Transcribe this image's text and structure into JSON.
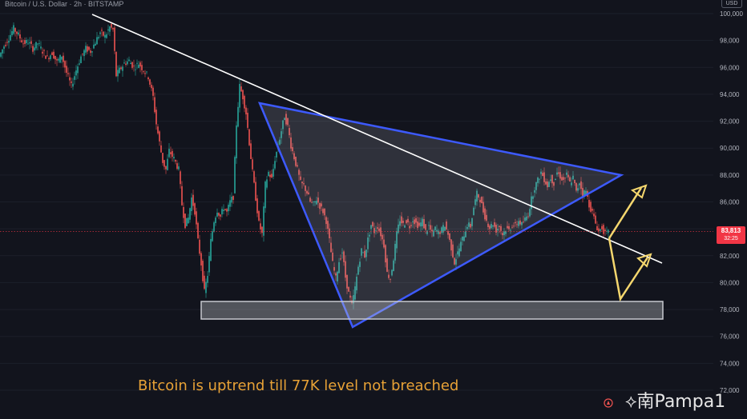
{
  "header": {
    "symbol_title": "Bitcoin / U.S. Dollar · 2h · BITSTAMP"
  },
  "currency": "USD",
  "caption": "Bitcoin is uptrend till 77K level not breached",
  "watermark": "南Pampa1",
  "price_badge": {
    "price": "83,813",
    "countdown": "32:25"
  },
  "colors": {
    "background": "#12141d",
    "up_candle": "#26a69a",
    "down_candle": "#ef5350",
    "trendline": "#ffffff",
    "triangle": "#3d5afe",
    "support_zone": "#c8cad0",
    "arrows": "#f5d76e",
    "caption": "#e8a236",
    "price_line": "#f23645"
  },
  "chart_data": {
    "type": "candlestick",
    "yaxis": {
      "ylim": [
        72000,
        100000
      ],
      "ticks": [
        "100,000",
        "98,000",
        "96,000",
        "94,000",
        "92,000",
        "90,000",
        "88,000",
        "86,000",
        "84,000",
        "82,000",
        "80,000",
        "78,000",
        "76,000",
        "74,000",
        "72,000"
      ]
    },
    "current_price": 83813,
    "price_path": [
      [
        0,
        96800
      ],
      [
        6,
        97600
      ],
      [
        12,
        98200
      ],
      [
        18,
        98900
      ],
      [
        24,
        98400
      ],
      [
        30,
        97800
      ],
      [
        36,
        97900
      ],
      [
        42,
        97400
      ],
      [
        48,
        97800
      ],
      [
        54,
        97200
      ],
      [
        60,
        96700
      ],
      [
        66,
        97100
      ],
      [
        72,
        96400
      ],
      [
        78,
        96900
      ],
      [
        84,
        95600
      ],
      [
        90,
        94600
      ],
      [
        96,
        95800
      ],
      [
        102,
        96800
      ],
      [
        108,
        97400
      ],
      [
        114,
        97200
      ],
      [
        120,
        97900
      ],
      [
        126,
        98600
      ],
      [
        132,
        98300
      ],
      [
        138,
        99000
      ],
      [
        142,
        98800
      ],
      [
        146,
        95400
      ],
      [
        150,
        95800
      ],
      [
        156,
        96300
      ],
      [
        162,
        96500
      ],
      [
        168,
        96000
      ],
      [
        174,
        96300
      ],
      [
        180,
        95800
      ],
      [
        186,
        95300
      ],
      [
        192,
        93800
      ],
      [
        196,
        91800
      ],
      [
        200,
        90400
      ],
      [
        204,
        89000
      ],
      [
        208,
        88400
      ],
      [
        212,
        89800
      ],
      [
        218,
        89200
      ],
      [
        224,
        88400
      ],
      [
        228,
        85800
      ],
      [
        232,
        84300
      ],
      [
        236,
        84800
      ],
      [
        240,
        86300
      ],
      [
        244,
        85300
      ],
      [
        248,
        83100
      ],
      [
        252,
        81400
      ],
      [
        256,
        79300
      ],
      [
        260,
        80600
      ],
      [
        264,
        83100
      ],
      [
        268,
        84600
      ],
      [
        272,
        85400
      ],
      [
        276,
        84900
      ],
      [
        280,
        85600
      ],
      [
        284,
        85200
      ],
      [
        288,
        86000
      ],
      [
        292,
        86400
      ],
      [
        296,
        91800
      ],
      [
        300,
        94600
      ],
      [
        304,
        93800
      ],
      [
        308,
        92600
      ],
      [
        312,
        90400
      ],
      [
        316,
        88200
      ],
      [
        320,
        86300
      ],
      [
        324,
        84400
      ],
      [
        328,
        83600
      ],
      [
        332,
        87300
      ],
      [
        336,
        88200
      ],
      [
        340,
        87700
      ],
      [
        344,
        89200
      ],
      [
        348,
        90200
      ],
      [
        352,
        91300
      ],
      [
        356,
        92400
      ],
      [
        360,
        91600
      ],
      [
        364,
        90200
      ],
      [
        368,
        89300
      ],
      [
        372,
        88400
      ],
      [
        376,
        87400
      ],
      [
        380,
        87200
      ],
      [
        384,
        86700
      ],
      [
        388,
        86000
      ],
      [
        392,
        85800
      ],
      [
        396,
        86200
      ],
      [
        400,
        85700
      ],
      [
        404,
        85300
      ],
      [
        408,
        84600
      ],
      [
        412,
        83100
      ],
      [
        416,
        81400
      ],
      [
        420,
        80300
      ],
      [
        424,
        81600
      ],
      [
        428,
        82300
      ],
      [
        432,
        80400
      ],
      [
        436,
        79200
      ],
      [
        440,
        78300
      ],
      [
        444,
        79600
      ],
      [
        448,
        81200
      ],
      [
        452,
        82400
      ],
      [
        456,
        82000
      ],
      [
        460,
        83200
      ],
      [
        464,
        84300
      ],
      [
        468,
        83800
      ],
      [
        472,
        84200
      ],
      [
        476,
        83600
      ],
      [
        480,
        82800
      ],
      [
        484,
        80700
      ],
      [
        488,
        80300
      ],
      [
        492,
        81800
      ],
      [
        496,
        83600
      ],
      [
        500,
        84700
      ],
      [
        504,
        84300
      ],
      [
        508,
        84600
      ],
      [
        512,
        84200
      ],
      [
        516,
        84700
      ],
      [
        520,
        84400
      ],
      [
        524,
        84200
      ],
      [
        528,
        84600
      ],
      [
        532,
        83800
      ],
      [
        536,
        84200
      ],
      [
        540,
        83600
      ],
      [
        544,
        84000
      ],
      [
        548,
        83700
      ],
      [
        552,
        83900
      ],
      [
        556,
        84300
      ],
      [
        560,
        83600
      ],
      [
        564,
        82600
      ],
      [
        568,
        81500
      ],
      [
        572,
        82200
      ],
      [
        576,
        82900
      ],
      [
        580,
        83600
      ],
      [
        584,
        84300
      ],
      [
        588,
        84200
      ],
      [
        592,
        85600
      ],
      [
        596,
        86600
      ],
      [
        600,
        86200
      ],
      [
        604,
        85300
      ],
      [
        608,
        84600
      ],
      [
        612,
        84100
      ],
      [
        616,
        84400
      ],
      [
        620,
        83900
      ],
      [
        624,
        84200
      ],
      [
        628,
        83600
      ],
      [
        632,
        84000
      ],
      [
        636,
        83900
      ],
      [
        640,
        84300
      ],
      [
        644,
        84200
      ],
      [
        648,
        84600
      ],
      [
        652,
        84300
      ],
      [
        656,
        84700
      ],
      [
        660,
        85100
      ],
      [
        664,
        86200
      ],
      [
        668,
        87100
      ],
      [
        672,
        87600
      ],
      [
        676,
        88200
      ],
      [
        680,
        87700
      ],
      [
        684,
        87200
      ],
      [
        688,
        87800
      ],
      [
        692,
        87400
      ],
      [
        696,
        88200
      ],
      [
        700,
        87900
      ],
      [
        704,
        87600
      ],
      [
        708,
        88000
      ],
      [
        712,
        87400
      ],
      [
        716,
        87800
      ],
      [
        720,
        86700
      ],
      [
        724,
        87500
      ],
      [
        728,
        86600
      ],
      [
        732,
        86800
      ],
      [
        736,
        85800
      ],
      [
        740,
        85200
      ],
      [
        744,
        84400
      ],
      [
        748,
        83800
      ],
      [
        752,
        84100
      ],
      [
        756,
        83600
      ],
      [
        760,
        83700
      ]
    ]
  }
}
